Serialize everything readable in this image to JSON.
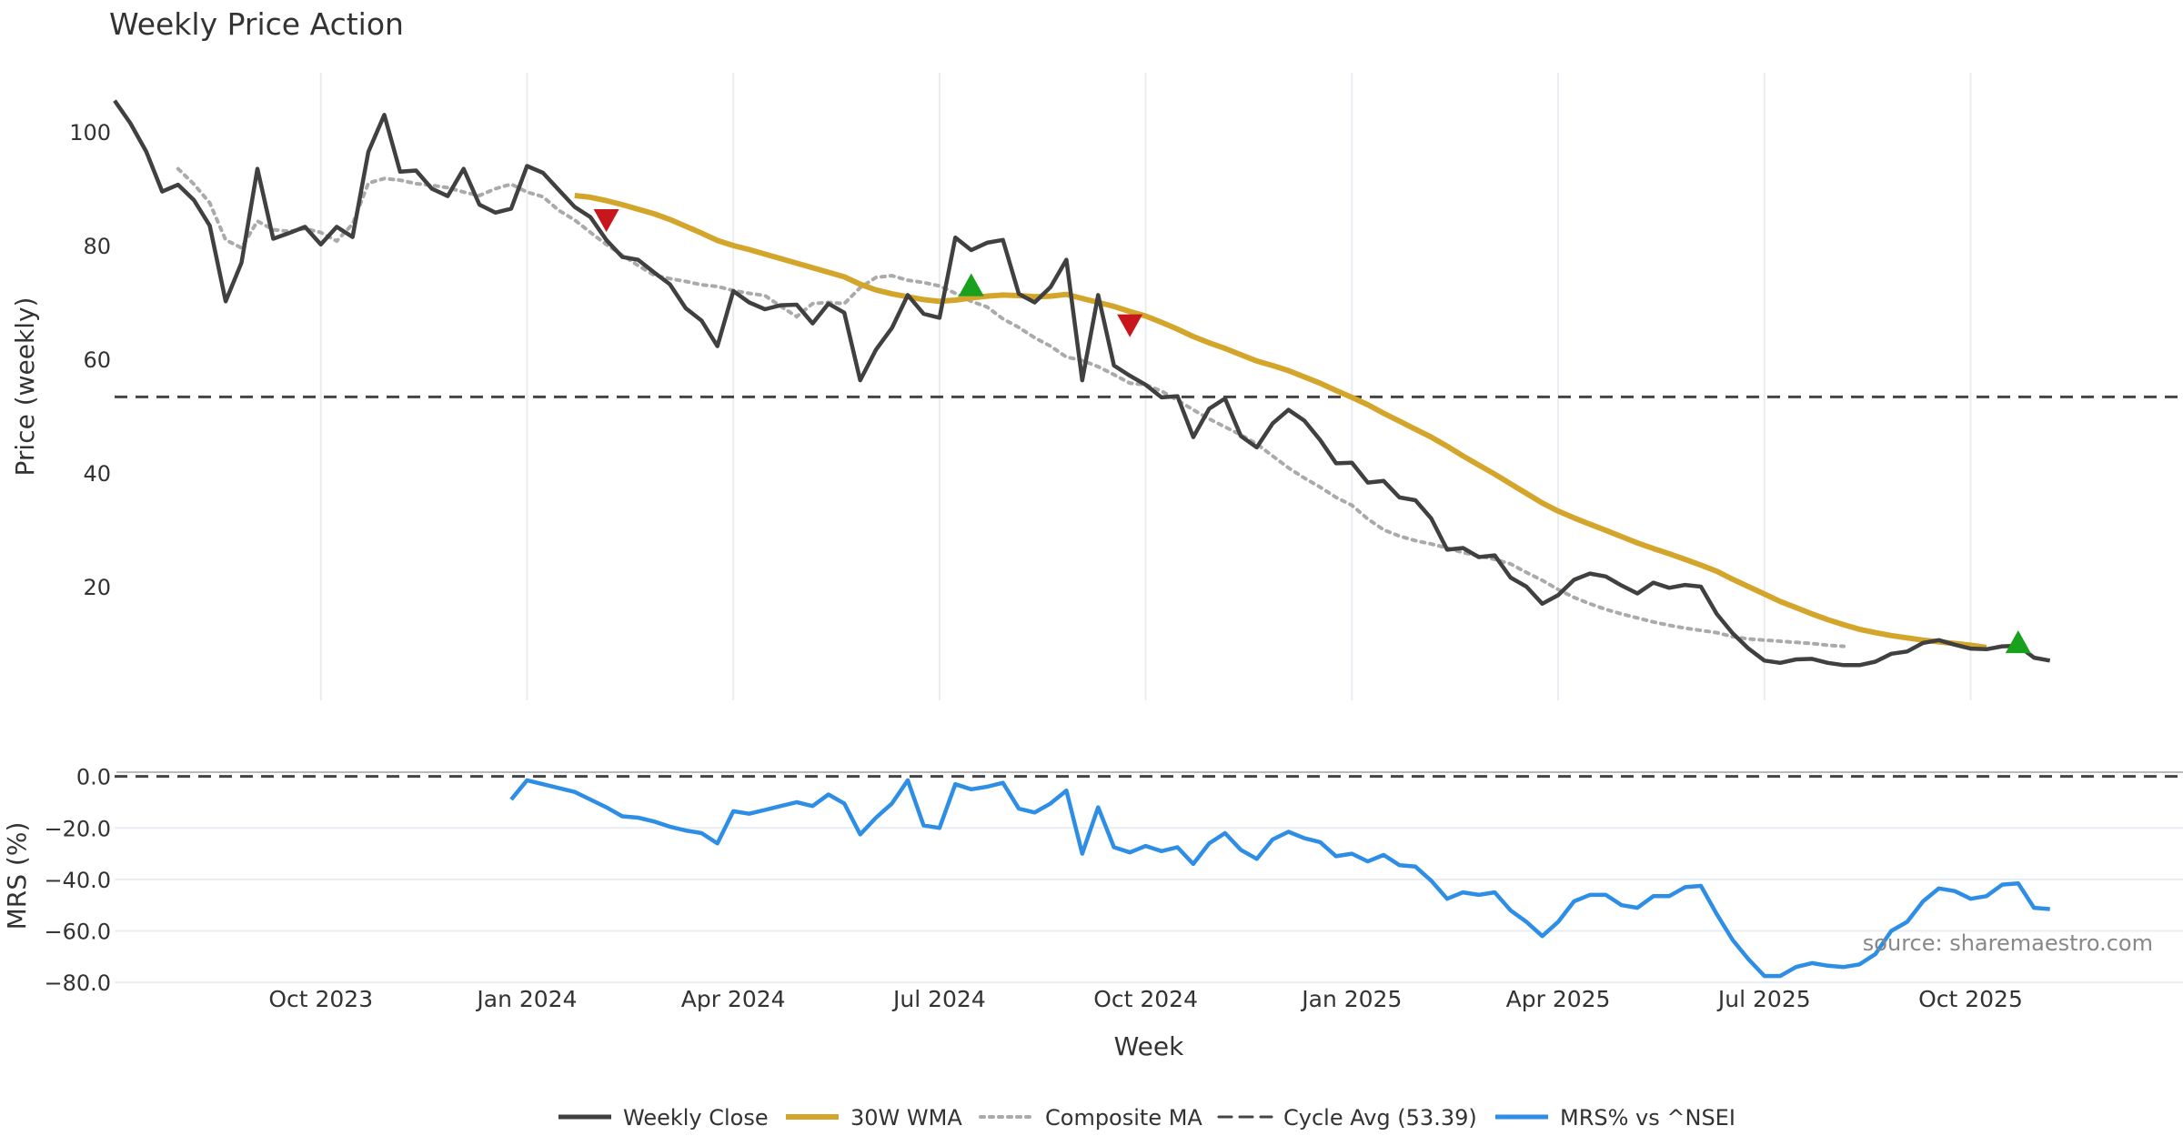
{
  "chart_data": {
    "type": "line",
    "title": "Weekly Price Action",
    "xlabel": "Week",
    "x_ticks": [
      "Oct 2023",
      "Jan 2024",
      "Apr 2024",
      "Jul 2024",
      "Oct 2024",
      "Jan 2025",
      "Apr 2025",
      "Jul 2025",
      "Oct 2025"
    ],
    "x_tick_index": [
      17,
      30,
      43,
      56,
      69,
      82,
      95,
      108,
      121
    ],
    "x_range_index": [
      4,
      129
    ],
    "price_panel": {
      "ylabel": "Price (weekly)",
      "ylim": [
        0,
        112
      ],
      "yticks": [
        20,
        40,
        60,
        80,
        100
      ],
      "cycle_avg": 53.39,
      "series": [
        {
          "name": "Weekly Close",
          "color": "#404040",
          "style": "solid",
          "start_index": 4,
          "values": [
            105.5,
            101.5,
            96.5,
            89.5,
            90.7,
            88.0,
            83.5,
            70.2,
            77.0,
            93.5,
            81.2,
            82.2,
            83.3,
            80.2,
            83.3,
            81.5,
            96.5,
            103.0,
            93.0,
            93.2,
            90.0,
            88.7,
            93.5,
            87.2,
            85.8,
            86.5,
            94.0,
            92.8,
            89.8,
            86.8,
            85.0,
            81.0,
            78.0,
            77.5,
            75.3,
            73.2,
            69.0,
            66.8,
            62.3,
            72.0,
            70.0,
            68.8,
            69.5,
            69.6,
            66.3,
            69.8,
            68.2,
            56.3,
            61.7,
            65.5,
            71.3,
            68.0,
            67.3,
            81.4,
            79.2,
            80.5,
            81.0,
            71.5,
            70.0,
            72.7,
            77.5,
            56.3,
            71.3,
            58.9,
            57.1,
            55.5,
            53.3,
            53.5,
            46.3,
            51.3,
            53.1,
            46.5,
            44.5,
            48.7,
            51.1,
            49.2,
            45.8,
            41.7,
            41.8,
            38.3,
            38.6,
            35.7,
            35.2,
            32.0,
            26.5,
            26.8,
            25.2,
            25.5,
            21.6,
            20.0,
            17.0,
            18.5,
            21.2,
            22.3,
            21.8,
            20.2,
            18.8,
            20.7,
            19.8,
            20.3,
            20.0,
            15.2,
            11.8,
            9.1,
            7.0,
            6.6,
            7.2,
            7.3,
            6.6,
            6.2,
            6.2,
            6.8,
            8.2,
            8.6,
            10.1,
            10.6,
            9.8,
            9.1,
            9.0,
            9.5,
            9.6,
            7.5,
            7.0
          ]
        },
        {
          "name": "30W WMA",
          "color": "#d4a52b",
          "style": "solid",
          "start_index": 33,
          "values": [
            88.8,
            88.5,
            87.9,
            87.2,
            86.4,
            85.6,
            84.6,
            83.4,
            82.2,
            80.9,
            80.0,
            79.3,
            78.5,
            77.7,
            76.9,
            76.1,
            75.3,
            74.5,
            73.2,
            72.2,
            71.5,
            71.0,
            70.5,
            70.2,
            70.4,
            70.8,
            71.1,
            71.3,
            71.2,
            71.0,
            71.1,
            71.4,
            70.7,
            70.0,
            69.3,
            68.4,
            67.6,
            66.5,
            65.3,
            64.0,
            62.9,
            61.9,
            60.8,
            59.7,
            58.9,
            58.0,
            56.9,
            55.8,
            54.5,
            53.3,
            52.0,
            50.5,
            49.1,
            47.7,
            46.3,
            44.7,
            43.0,
            41.4,
            39.8,
            38.1,
            36.4,
            34.7,
            33.3,
            32.1,
            31.0,
            29.9,
            28.8,
            27.7,
            26.7,
            25.8,
            24.8,
            23.8,
            22.7,
            21.3,
            20.0,
            18.7,
            17.4,
            16.3,
            15.2,
            14.2,
            13.3,
            12.5,
            11.9,
            11.4,
            11.0,
            10.6,
            10.3,
            10.0,
            9.7,
            9.3
          ]
        },
        {
          "name": "Composite MA",
          "color": "#aaaaaa",
          "style": "dotted",
          "start_index": 8,
          "values": [
            93.5,
            90.8,
            87.5,
            81.0,
            79.6,
            84.3,
            82.8,
            82.5,
            83.0,
            82.3,
            80.8,
            83.8,
            91.0,
            91.8,
            91.5,
            90.9,
            90.6,
            90.2,
            89.4,
            88.8,
            90.0,
            90.8,
            89.4,
            88.6,
            86.2,
            84.5,
            82.3,
            80.2,
            78.3,
            76.5,
            74.8,
            74.2,
            73.7,
            73.1,
            72.8,
            72.1,
            71.6,
            71.2,
            69.3,
            67.5,
            69.8,
            70.0,
            69.8,
            72.6,
            74.4,
            74.7,
            73.9,
            73.5,
            72.9,
            71.6,
            70.2,
            69.2,
            67.1,
            65.6,
            63.8,
            62.3,
            60.4,
            59.8,
            58.7,
            57.3,
            55.8,
            55.5,
            54.4,
            52.8,
            51.1,
            49.5,
            48.1,
            46.7,
            45.1,
            43.0,
            40.9,
            39.1,
            37.5,
            35.7,
            34.3,
            31.9,
            30.0,
            28.9,
            28.1,
            27.5,
            26.8,
            26.0,
            25.4,
            24.8,
            24.0,
            22.5,
            21.1,
            19.5,
            18.1,
            17.0,
            16.0,
            15.2,
            14.5,
            13.8,
            13.2,
            12.7,
            12.3,
            11.9,
            11.2,
            10.8,
            10.6,
            10.4,
            10.2,
            10.0,
            9.7,
            9.5
          ]
        },
        {
          "name": "Cycle Avg (53.39)",
          "color": "#444444",
          "style": "dashed",
          "constant": 53.39
        }
      ],
      "markers": [
        {
          "kind": "sell",
          "index": 35,
          "value": 84.5,
          "color": "#c8171c"
        },
        {
          "kind": "buy",
          "index": 58,
          "value": 73.0,
          "color": "#19a11d"
        },
        {
          "kind": "sell",
          "index": 68,
          "value": 66.0,
          "color": "#c8171c"
        },
        {
          "kind": "buy",
          "index": 124,
          "value": 10.2,
          "color": "#19a11d"
        }
      ]
    },
    "mrs_panel": {
      "ylabel": "MRS (%)",
      "ylim": [
        -81,
        2
      ],
      "yticks": [
        "0.0",
        "-20.0",
        "-40.0",
        "-60.0",
        "-80.0"
      ],
      "ytick_values": [
        0,
        -20,
        -40,
        -60,
        -80
      ],
      "zero_line": 0,
      "series": [
        {
          "name": "MRS% vs ^NSEI",
          "color": "#2e8ee6",
          "style": "solid",
          "start_index": 29,
          "values": [
            -9.0,
            -1.5,
            -3.0,
            -4.5,
            -6.0,
            -9.0,
            -12.0,
            -15.5,
            -16.0,
            -17.5,
            -19.5,
            -21.0,
            -22.0,
            -26.0,
            -13.5,
            -14.5,
            -13.0,
            -11.5,
            -10.0,
            -11.5,
            -7.0,
            -10.5,
            -22.5,
            -16.0,
            -10.5,
            -1.5,
            -19.0,
            -20.0,
            -3.0,
            -5.0,
            -4.0,
            -2.5,
            -12.5,
            -14.0,
            -10.5,
            -5.5,
            -30.0,
            -12.0,
            -27.5,
            -29.5,
            -27.0,
            -29.0,
            -27.5,
            -34.0,
            -26.0,
            -22.0,
            -28.5,
            -32.0,
            -24.5,
            -21.5,
            -24.0,
            -25.5,
            -31.0,
            -30.0,
            -33.0,
            -30.5,
            -34.5,
            -35.0,
            -40.5,
            -47.5,
            -45.0,
            -46.0,
            -45.0,
            -52.0,
            -56.5,
            -62.0,
            -56.5,
            -48.5,
            -46.0,
            -46.0,
            -50.0,
            -51.0,
            -46.5,
            -46.5,
            -43.0,
            -42.5,
            -53.5,
            -63.5,
            -71.0,
            -77.5,
            -77.5,
            -74.0,
            -72.5,
            -73.5,
            -74.0,
            -73.0,
            -69.0,
            -60.0,
            -56.5,
            -48.5,
            -43.5,
            -44.5,
            -47.5,
            -46.5,
            -42.0,
            -41.5,
            -51.0,
            -51.5
          ]
        }
      ]
    },
    "legend": [
      "Weekly Close",
      "30W WMA",
      "Composite MA",
      "Cycle Avg (53.39)",
      "MRS% vs ^NSEI"
    ],
    "legend_placement": "bottom-center",
    "annotation": "source: sharemaestro.com"
  },
  "colors": {
    "close": "#404040",
    "wma": "#d4a52b",
    "composite": "#aaaaaa",
    "cycle": "#444444",
    "mrs": "#2e8ee6",
    "grid": "#e9edf1",
    "sell": "#c8171c",
    "buy": "#19a11d"
  }
}
